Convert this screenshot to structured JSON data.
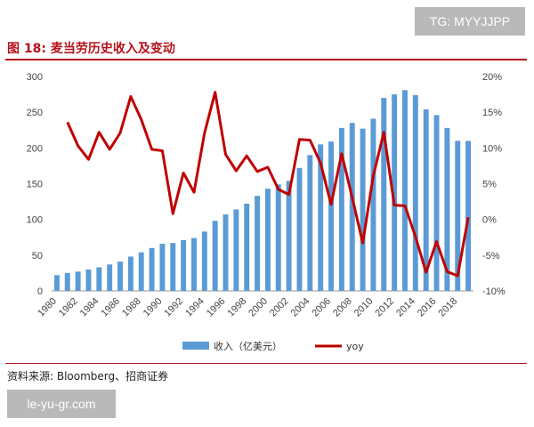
{
  "watermark_top": "TG: MYYJJPP",
  "watermark_bottom": "le-yu-gr.com",
  "figure_title": "图 18:  麦当劳历史收入及变动",
  "source": "资料来源:  Bloomberg、招商证券",
  "colors": {
    "bars": "#5b9bd5",
    "line": "#c00000",
    "accent": "#b5121b"
  },
  "chart_data": {
    "type": "bar",
    "x": [
      1980,
      1981,
      1982,
      1983,
      1984,
      1985,
      1986,
      1987,
      1988,
      1989,
      1990,
      1991,
      1992,
      1993,
      1994,
      1995,
      1996,
      1997,
      1998,
      1999,
      2000,
      2001,
      2002,
      2003,
      2004,
      2005,
      2006,
      2007,
      2008,
      2009,
      2010,
      2011,
      2012,
      2013,
      2014,
      2015,
      2016,
      2017,
      2018,
      2019
    ],
    "x_tick_labels": [
      "1980",
      "1982",
      "1984",
      "1986",
      "1988",
      "1990",
      "1992",
      "1994",
      "1996",
      "1998",
      "2000",
      "2002",
      "2004",
      "2006",
      "2008",
      "2010",
      "2012",
      "2014",
      "2016",
      "2018"
    ],
    "series": [
      {
        "name": "收入（亿美元）",
        "type": "bar",
        "axis": "left",
        "values": [
          22,
          25,
          27,
          30,
          33,
          37,
          41,
          48,
          54,
          60,
          66,
          67,
          71,
          74,
          83,
          98,
          107,
          114,
          122,
          133,
          143,
          149,
          154,
          172,
          190,
          205,
          209,
          228,
          235,
          227,
          241,
          270,
          275,
          281,
          274,
          254,
          246,
          228,
          210,
          210
        ]
      },
      {
        "name": "yoy",
        "type": "line",
        "axis": "right",
        "values": [
          null,
          13.6,
          10.3,
          8.4,
          12.2,
          9.8,
          12.1,
          17.2,
          14,
          9.8,
          9.6,
          0.8,
          6.5,
          3.8,
          12.1,
          17.8,
          9.1,
          6.8,
          8.9,
          6.7,
          7.3,
          4.2,
          3.5,
          11.2,
          11.1,
          7.9,
          2.1,
          9.2,
          3.1,
          -3.3,
          6.1,
          12.2,
          2,
          1.9,
          -2.4,
          -7.4,
          -3.1,
          -7.3,
          -7.9,
          0.3
        ]
      }
    ],
    "y_left": {
      "min": 0,
      "max": 300,
      "ticks": [
        0,
        50,
        100,
        150,
        200,
        250,
        300
      ]
    },
    "y_right": {
      "min": -10,
      "max": 20,
      "ticks": [
        "-10%",
        "-5%",
        "0%",
        "5%",
        "10%",
        "15%",
        "20%"
      ]
    },
    "legend": {
      "placement": "bottom"
    },
    "grid": false
  }
}
